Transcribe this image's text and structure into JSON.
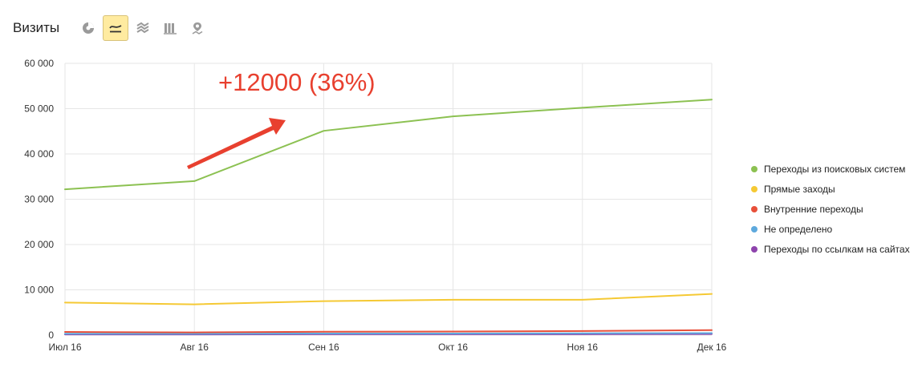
{
  "header": {
    "title": "Визиты",
    "tools": [
      {
        "name": "pie-chart-icon",
        "active": false
      },
      {
        "name": "line-chart-icon",
        "active": true
      },
      {
        "name": "area-chart-icon",
        "active": false
      },
      {
        "name": "column-chart-icon",
        "active": false
      },
      {
        "name": "map-pin-icon",
        "active": false
      }
    ]
  },
  "annotation": {
    "text": "+12000 (36%)",
    "color": "#e8402f"
  },
  "chart_data": {
    "type": "line",
    "title": "",
    "xlabel": "",
    "ylabel": "",
    "categories": [
      "Июл 16",
      "Авг 16",
      "Сен 16",
      "Окт 16",
      "Ноя 16",
      "Дек 16"
    ],
    "ylim": [
      0,
      60000
    ],
    "yticks": [
      0,
      10000,
      20000,
      30000,
      40000,
      50000,
      60000
    ],
    "ytick_labels": [
      "0",
      "10 000",
      "20 000",
      "30 000",
      "40 000",
      "50 000",
      "60 000"
    ],
    "grid": true,
    "legend_position": "right",
    "series": [
      {
        "name": "Переходы из поисковых систем",
        "color": "#8cc152",
        "values": [
          32200,
          34000,
          45100,
          48300,
          50200,
          52000
        ]
      },
      {
        "name": "Прямые заходы",
        "color": "#f5c934",
        "values": [
          7200,
          6800,
          7500,
          7800,
          7800,
          9100
        ]
      },
      {
        "name": "Внутренние переходы",
        "color": "#e8503a",
        "values": [
          700,
          600,
          750,
          800,
          900,
          1100
        ]
      },
      {
        "name": "Не определено",
        "color": "#5ea9dd",
        "values": [
          300,
          300,
          350,
          350,
          400,
          450
        ]
      },
      {
        "name": "Переходы по ссылкам на сайтах",
        "color": "#8e44ad",
        "values": [
          150,
          150,
          200,
          200,
          200,
          250
        ]
      }
    ]
  }
}
